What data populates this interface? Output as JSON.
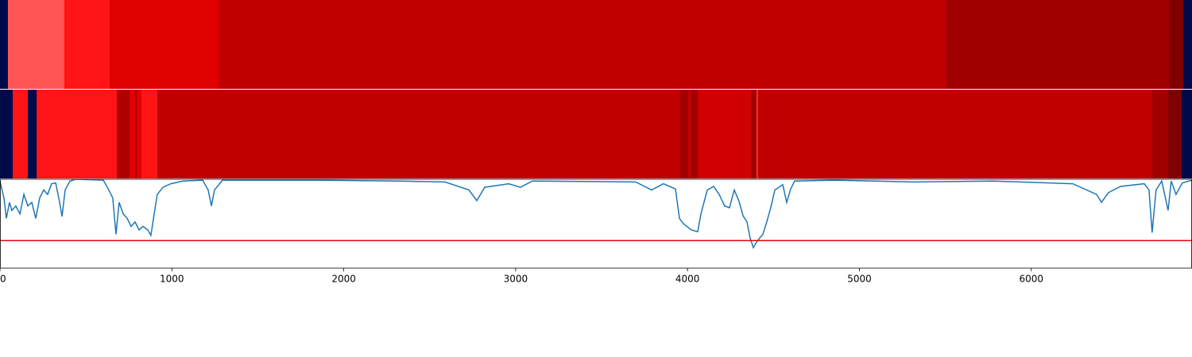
{
  "chart_data": [
    {
      "type": "strip",
      "xlim": [
        0,
        6935
      ],
      "segments": [
        {
          "start": 0,
          "end": 46,
          "color": "#000a4a"
        },
        {
          "start": 46,
          "end": 374,
          "color": "#ff5555"
        },
        {
          "start": 374,
          "end": 638,
          "color": "#ff1515"
        },
        {
          "start": 638,
          "end": 1271,
          "color": "#e00000"
        },
        {
          "start": 1271,
          "end": 5506,
          "color": "#c00000"
        },
        {
          "start": 5506,
          "end": 6801,
          "color": "#a00000"
        },
        {
          "start": 6801,
          "end": 6884,
          "color": "#800000"
        },
        {
          "start": 6884,
          "end": 6935,
          "color": "#000a4a"
        }
      ]
    },
    {
      "type": "strip",
      "xlim": [
        0,
        6935
      ],
      "segments": [
        {
          "start": 0,
          "end": 74,
          "color": "#000a4a"
        },
        {
          "start": 74,
          "end": 162,
          "color": "#ff1515"
        },
        {
          "start": 162,
          "end": 213,
          "color": "#000a4a"
        },
        {
          "start": 213,
          "end": 680,
          "color": "#ff1515"
        },
        {
          "start": 680,
          "end": 754,
          "color": "#b00000"
        },
        {
          "start": 754,
          "end": 786,
          "color": "#e00000"
        },
        {
          "start": 786,
          "end": 795,
          "color": "#a00000"
        },
        {
          "start": 795,
          "end": 823,
          "color": "#e00000"
        },
        {
          "start": 823,
          "end": 915,
          "color": "#ff1515"
        },
        {
          "start": 915,
          "end": 3957,
          "color": "#c00000"
        },
        {
          "start": 3957,
          "end": 4004,
          "color": "#a00000"
        },
        {
          "start": 4004,
          "end": 4022,
          "color": "#c00000"
        },
        {
          "start": 4022,
          "end": 4059,
          "color": "#a00000"
        },
        {
          "start": 4059,
          "end": 4369,
          "color": "#d00000"
        },
        {
          "start": 4369,
          "end": 4401,
          "color": "#a00000"
        },
        {
          "start": 4401,
          "end": 4410,
          "color": "#ff3030"
        },
        {
          "start": 4410,
          "end": 6704,
          "color": "#c00000"
        },
        {
          "start": 6704,
          "end": 6796,
          "color": "#a00000"
        },
        {
          "start": 6796,
          "end": 6875,
          "color": "#800000"
        },
        {
          "start": 6875,
          "end": 6935,
          "color": "#000a4a"
        }
      ]
    },
    {
      "type": "line",
      "xlim": [
        0,
        6935
      ],
      "ylim": [
        0,
        1
      ],
      "xticks": [
        0,
        1000,
        2000,
        3000,
        4000,
        5000,
        6000
      ],
      "color": "#1f77b4",
      "threshold": 0.31,
      "threshold_color": "#e8000b",
      "x": [
        0,
        23,
        37,
        55,
        69,
        92,
        116,
        139,
        162,
        185,
        208,
        231,
        254,
        277,
        300,
        324,
        347,
        361,
        379,
        407,
        439,
        601,
        633,
        656,
        675,
        693,
        717,
        740,
        763,
        786,
        809,
        832,
        860,
        878,
        897,
        915,
        948,
        994,
        1063,
        1179,
        1211,
        1230,
        1248,
        1294,
        1849,
        2312,
        2589,
        2728,
        2774,
        2820,
        2959,
        3028,
        3097,
        3698,
        3791,
        3860,
        3930,
        3953,
        3976,
        4022,
        4059,
        4078,
        4115,
        4152,
        4184,
        4216,
        4244,
        4272,
        4300,
        4323,
        4346,
        4364,
        4383,
        4401,
        4420,
        4438,
        4461,
        4484,
        4508,
        4554,
        4577,
        4600,
        4623,
        4854,
        5316,
        5779,
        6241,
        6380,
        6408,
        6449,
        6519,
        6657,
        6685,
        6703,
        6726,
        6759,
        6796,
        6814,
        6842,
        6879,
        6935
      ],
      "values": [
        0.98,
        0.79,
        0.56,
        0.74,
        0.65,
        0.7,
        0.61,
        0.83,
        0.7,
        0.74,
        0.56,
        0.79,
        0.88,
        0.83,
        0.95,
        0.96,
        0.74,
        0.58,
        0.88,
        0.98,
        1.0,
        0.99,
        0.88,
        0.79,
        0.38,
        0.74,
        0.61,
        0.56,
        0.47,
        0.52,
        0.43,
        0.47,
        0.43,
        0.37,
        0.61,
        0.83,
        0.91,
        0.95,
        0.98,
        0.99,
        0.88,
        0.7,
        0.88,
        0.99,
        0.99,
        0.98,
        0.97,
        0.88,
        0.76,
        0.91,
        0.95,
        0.91,
        0.98,
        0.97,
        0.88,
        0.95,
        0.89,
        0.56,
        0.5,
        0.43,
        0.41,
        0.61,
        0.88,
        0.92,
        0.83,
        0.7,
        0.68,
        0.88,
        0.75,
        0.59,
        0.52,
        0.34,
        0.23,
        0.29,
        0.34,
        0.38,
        0.52,
        0.68,
        0.88,
        0.94,
        0.74,
        0.89,
        0.98,
        0.99,
        0.97,
        0.98,
        0.95,
        0.83,
        0.74,
        0.85,
        0.92,
        0.95,
        0.88,
        0.4,
        0.88,
        0.98,
        0.65,
        0.98,
        0.83,
        0.96,
        0.99
      ]
    }
  ]
}
